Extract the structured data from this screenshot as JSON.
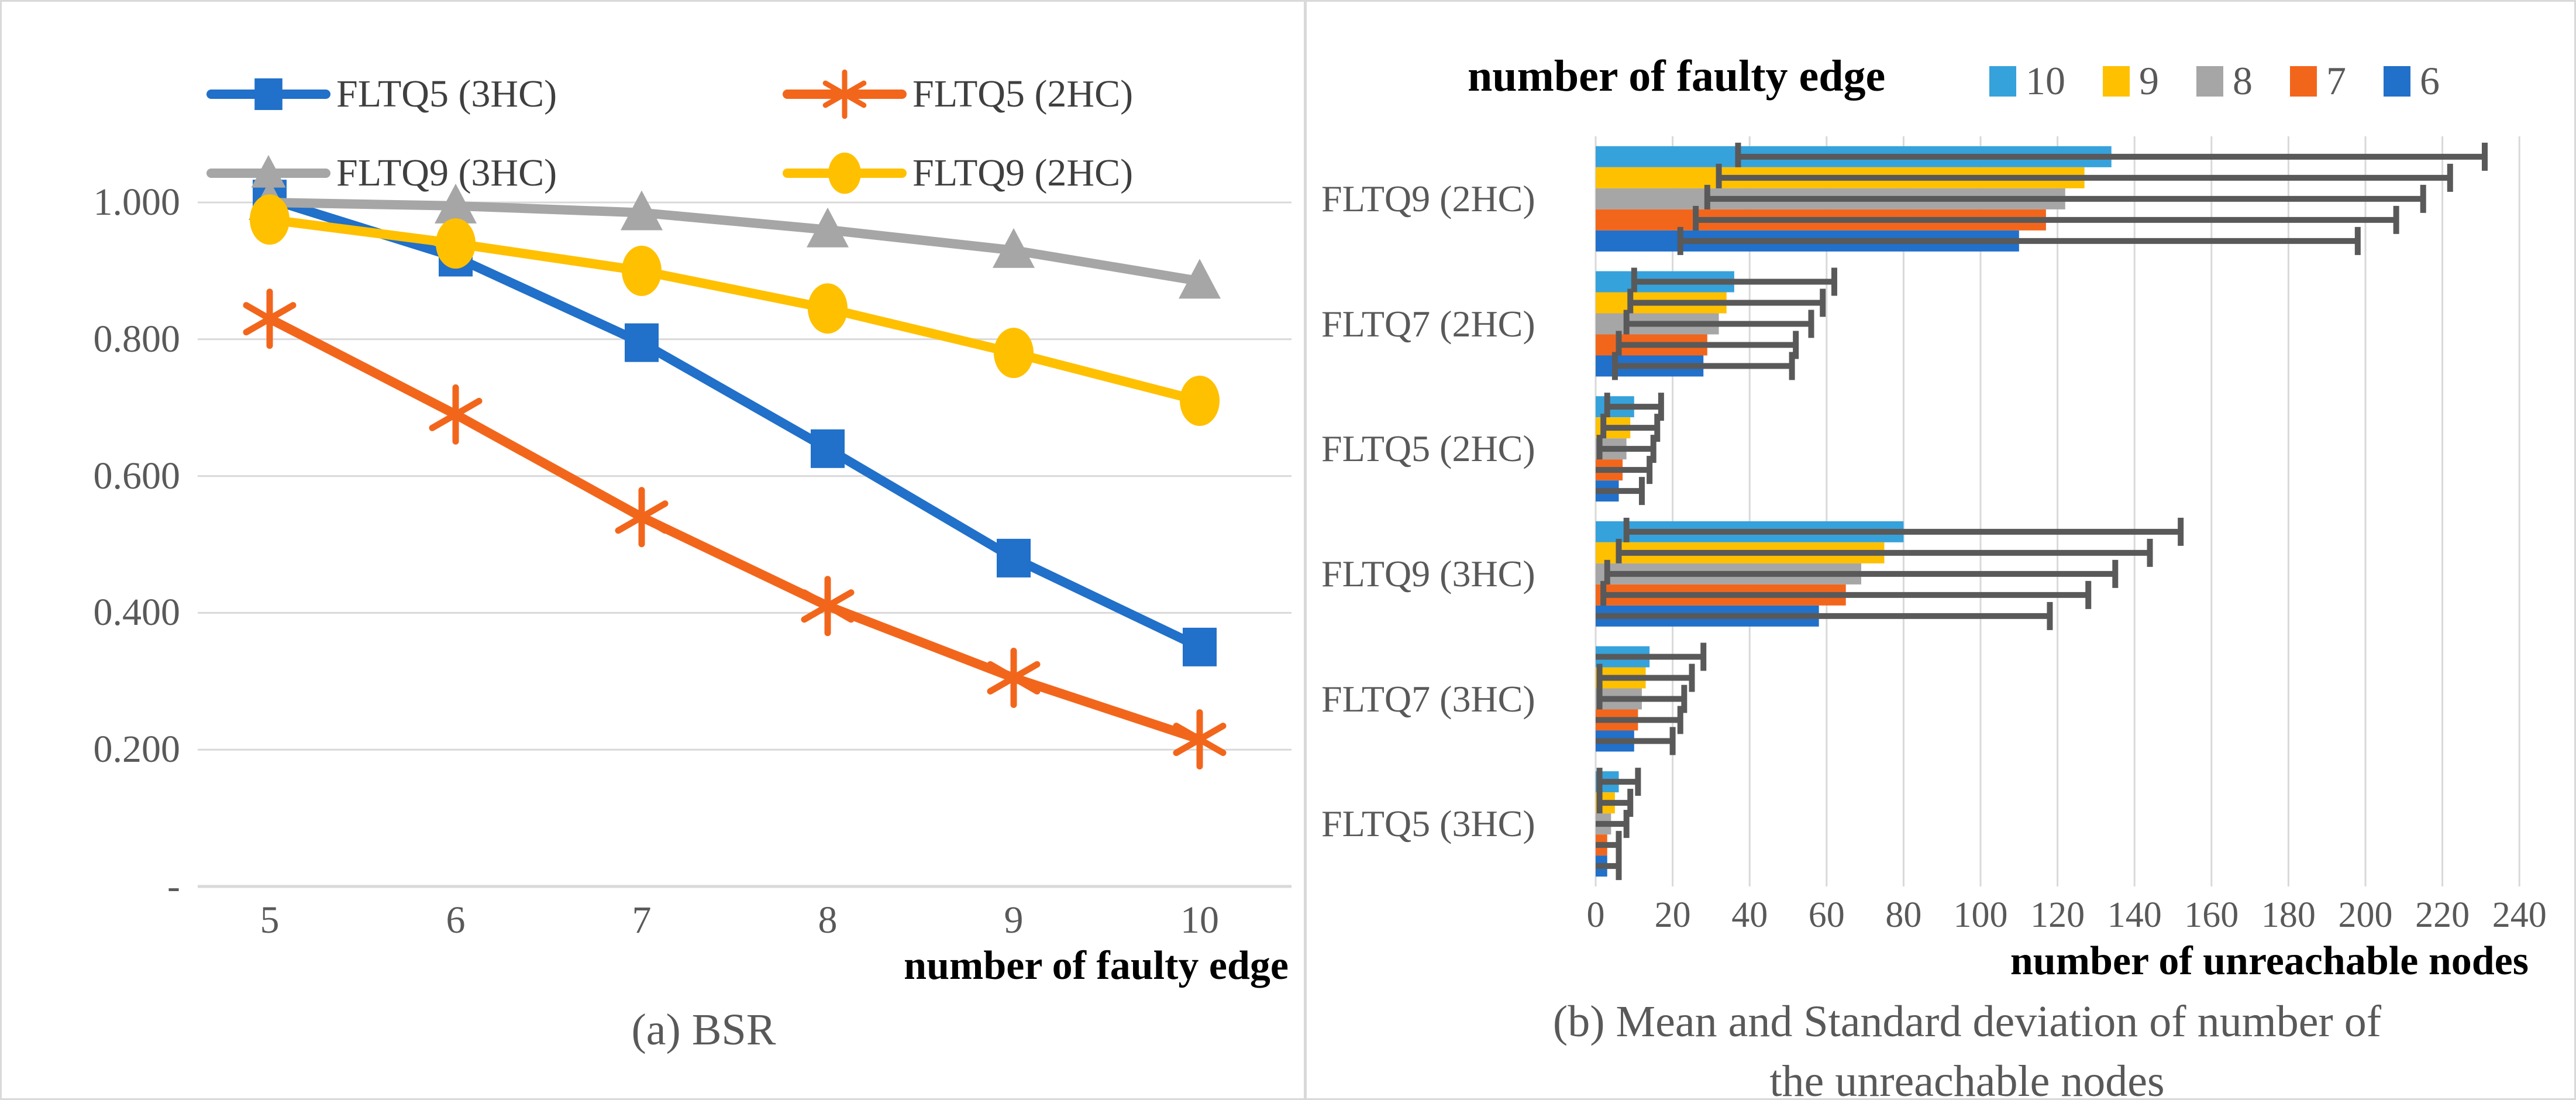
{
  "figure": {
    "background": "#ffffff",
    "border_color": "#d9d9d9",
    "grid_color": "#d9d9d9",
    "tick_color": "#595959",
    "caption_color": "#595959",
    "error_bar_color": "#595959"
  },
  "chart_data": [
    {
      "type": "line",
      "caption": "(a) BSR",
      "xlabel": "number of faulty edge",
      "x": [
        5,
        6,
        7,
        8,
        9,
        10
      ],
      "x_tick_labels": [
        "5",
        "6",
        "7",
        "8",
        "9",
        "10"
      ],
      "ylim": [
        0,
        1.07
      ],
      "grid": true,
      "legend_position": "top",
      "yticks": [
        {
          "value": 1.0,
          "label": "1.000"
        },
        {
          "value": 0.8,
          "label": "0.800"
        },
        {
          "value": 0.6,
          "label": "0.600"
        },
        {
          "value": 0.4,
          "label": "0.400"
        },
        {
          "value": 0.2,
          "label": "0.200"
        },
        {
          "value": 0.0,
          "label": "-"
        }
      ],
      "series": [
        {
          "name": "FLTQ5 (3HC)",
          "color": "#2170c9",
          "marker": "square",
          "values": [
            1.005,
            0.92,
            0.795,
            0.64,
            0.48,
            0.35
          ]
        },
        {
          "name": "FLTQ5 (2HC)",
          "color": "#f2661c",
          "marker": "asterisk",
          "values": [
            0.83,
            0.69,
            0.54,
            0.41,
            0.305,
            0.215
          ]
        },
        {
          "name": "FLTQ9 (3HC)",
          "color": "#a6a6a6",
          "marker": "triangle",
          "values": [
            1.0,
            0.995,
            0.985,
            0.96,
            0.93,
            0.885
          ]
        },
        {
          "name": "FLTQ9 (2HC)",
          "color": "#ffc000",
          "marker": "circle",
          "values": [
            0.975,
            0.94,
            0.9,
            0.845,
            0.78,
            0.71
          ]
        }
      ],
      "legend_rows": [
        [
          "FLTQ5 (3HC)",
          "FLTQ5 (2HC)"
        ],
        [
          "FLTQ9 (3HC)",
          "FLTQ9 (2HC)"
        ]
      ]
    },
    {
      "type": "bar",
      "orientation": "horizontal",
      "legend_title": "number of faulty edge",
      "xlabel": "number of unreachable nodes",
      "caption_line1": "(b) Mean and Standard deviation of number of",
      "caption_line2": "the unreachable nodes",
      "categories": [
        "FLTQ9 (2HC)",
        "FLTQ7 (2HC)",
        "FLTQ5 (2HC)",
        "FLTQ9 (3HC)",
        "FLTQ7 (3HC)",
        "FLTQ5 (3HC)"
      ],
      "xlim": [
        0,
        240
      ],
      "xticks": [
        0,
        20,
        40,
        60,
        80,
        100,
        120,
        140,
        160,
        180,
        200,
        220,
        240
      ],
      "grid": true,
      "series": [
        {
          "name": "10",
          "color": "#36a2db",
          "means": [
            134,
            36,
            10,
            80,
            14,
            6
          ],
          "stds": [
            97,
            26,
            7,
            72,
            14,
            5
          ]
        },
        {
          "name": "9",
          "color": "#ffc000",
          "means": [
            127,
            34,
            9,
            75,
            13,
            5
          ],
          "stds": [
            95,
            25,
            7,
            69,
            12,
            4
          ]
        },
        {
          "name": "8",
          "color": "#a6a6a6",
          "means": [
            122,
            32,
            8,
            69,
            12,
            4
          ],
          "stds": [
            93,
            24,
            7,
            66,
            11,
            4
          ]
        },
        {
          "name": "7",
          "color": "#f2661c",
          "means": [
            117,
            29,
            7,
            65,
            11,
            3
          ],
          "stds": [
            91,
            23,
            7,
            63,
            11,
            3
          ]
        },
        {
          "name": "6",
          "color": "#2170c9",
          "means": [
            110,
            28,
            6,
            58,
            10,
            3
          ],
          "stds": [
            88,
            23,
            6,
            60,
            10,
            3
          ]
        }
      ]
    }
  ]
}
